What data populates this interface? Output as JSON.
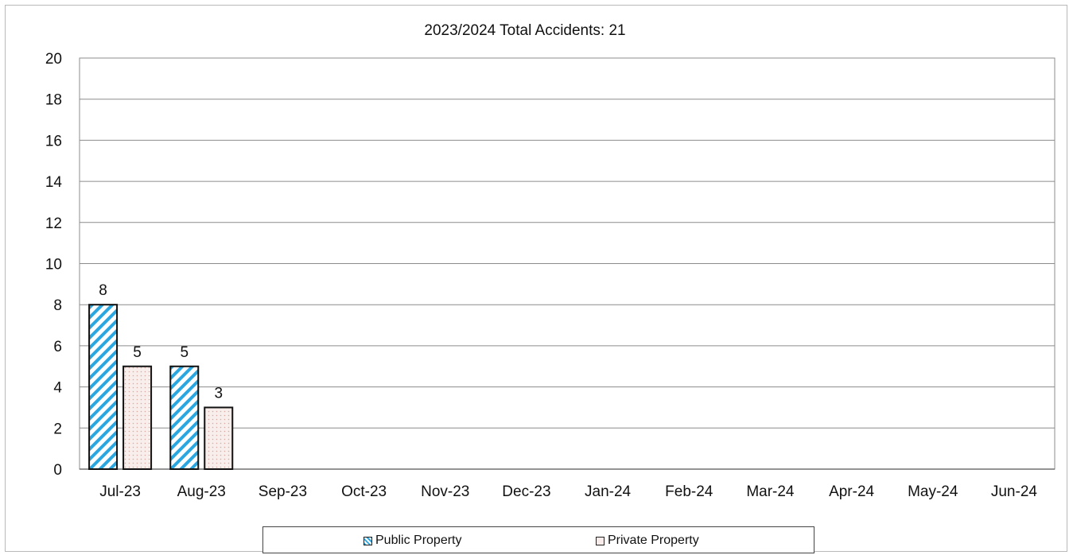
{
  "chart_data": {
    "type": "bar",
    "title": "2023/2024 Total Accidents: 21",
    "xlabel": "",
    "ylabel": "",
    "categories": [
      "Jul-23",
      "Aug-23",
      "Sep-23",
      "Oct-23",
      "Nov-23",
      "Dec-23",
      "Jan-24",
      "Feb-24",
      "Mar-24",
      "Apr-24",
      "May-24",
      "Jun-24"
    ],
    "series": [
      {
        "name": "Public Property",
        "values": [
          8,
          5,
          null,
          null,
          null,
          null,
          null,
          null,
          null,
          null,
          null,
          null
        ],
        "color": "#2aa7e0",
        "pattern": "diagonal-hatch"
      },
      {
        "name": "Private Property",
        "values": [
          5,
          3,
          null,
          null,
          null,
          null,
          null,
          null,
          null,
          null,
          null,
          null
        ],
        "color": "#f7ecea",
        "pattern": "dotted"
      }
    ],
    "ylim": [
      0,
      20
    ],
    "yticks": [
      0,
      2,
      4,
      6,
      8,
      10,
      12,
      14,
      16,
      18,
      20
    ],
    "grid": true,
    "legend_position": "bottom",
    "data_labels": true
  }
}
